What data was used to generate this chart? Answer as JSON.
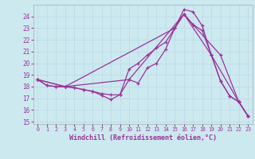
{
  "xlabel": "Windchill (Refroidissement éolien,°C)",
  "xlim": [
    -0.5,
    23.5
  ],
  "ylim": [
    14.8,
    25.0
  ],
  "yticks": [
    15,
    16,
    17,
    18,
    19,
    20,
    21,
    22,
    23,
    24
  ],
  "xticks": [
    0,
    1,
    2,
    3,
    4,
    5,
    6,
    7,
    8,
    9,
    10,
    11,
    12,
    13,
    14,
    15,
    16,
    17,
    18,
    19,
    20,
    21,
    22,
    23
  ],
  "bg_color": "#cde9f0",
  "line_color": "#993399",
  "grid_color": "#b8d8e8",
  "lines": [
    {
      "x": [
        0,
        1,
        2,
        3,
        4,
        5,
        6,
        7,
        8,
        9,
        10,
        11,
        12,
        13,
        14,
        15,
        16,
        17,
        18,
        19,
        20,
        21,
        22,
        23
      ],
      "y": [
        18.6,
        18.1,
        18.0,
        18.0,
        17.9,
        17.75,
        17.6,
        17.25,
        16.9,
        17.3,
        18.6,
        18.3,
        19.6,
        20.0,
        21.2,
        23.0,
        24.6,
        24.4,
        23.2,
        20.7,
        18.5,
        17.2,
        16.7,
        15.5
      ]
    },
    {
      "x": [
        0,
        1,
        2,
        3,
        4,
        5,
        6,
        7,
        8,
        9,
        10,
        11,
        12,
        13,
        14,
        15,
        16,
        17,
        18,
        19,
        20,
        21,
        22,
        23
      ],
      "y": [
        18.6,
        18.1,
        18.0,
        18.0,
        17.9,
        17.75,
        17.6,
        17.4,
        17.3,
        17.3,
        19.5,
        20.0,
        20.7,
        21.3,
        21.8,
        23.0,
        24.2,
        23.3,
        22.8,
        20.7,
        18.5,
        17.2,
        16.7,
        15.5
      ]
    },
    {
      "x": [
        0,
        3,
        15,
        16,
        17,
        20,
        22,
        23
      ],
      "y": [
        18.6,
        18.0,
        23.0,
        24.2,
        23.3,
        20.7,
        16.7,
        15.5
      ]
    },
    {
      "x": [
        0,
        3,
        10,
        16,
        19,
        22,
        23
      ],
      "y": [
        18.6,
        18.0,
        18.6,
        24.2,
        20.7,
        16.7,
        15.5
      ]
    }
  ]
}
